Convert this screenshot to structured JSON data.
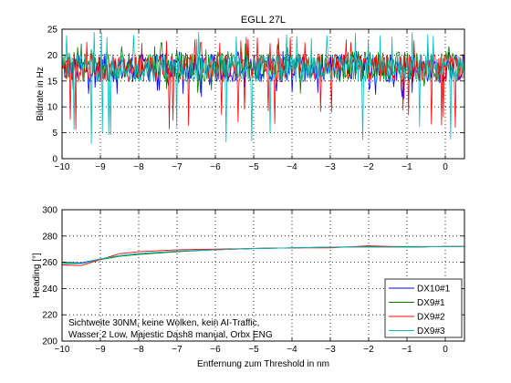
{
  "chart_data": [
    {
      "type": "line",
      "title": "EGLL 27L",
      "xlabel": "",
      "ylabel": "Bildrate in Hz",
      "xlim": [
        -10,
        0.5
      ],
      "ylim": [
        0,
        25
      ],
      "xticks": [
        -10,
        -9,
        -8,
        -7,
        -6,
        -5,
        -4,
        -3,
        -2,
        -1,
        0
      ],
      "yticks": [
        0,
        5,
        10,
        15,
        20,
        25
      ],
      "grid": true,
      "series": [
        {
          "name": "DX10#1",
          "color": "#0000ff",
          "approx_mean": 17.5,
          "approx_min": 11.5,
          "approx_max": 21.0
        },
        {
          "name": "DX9#1",
          "color": "#008000",
          "approx_mean": 18.0,
          "approx_min": 12.5,
          "approx_max": 22.5
        },
        {
          "name": "DX9#2",
          "color": "#ff0000",
          "approx_mean": 17.5,
          "approx_min": 5.5,
          "approx_max": 23.5
        },
        {
          "name": "DX9#3",
          "color": "#00bfbf",
          "approx_mean": 17.5,
          "approx_min": 2.5,
          "approx_max": 24.5
        }
      ]
    },
    {
      "type": "line",
      "title": "",
      "xlabel": "Entfernung zum Threshold in nm",
      "ylabel": "Heading [°]",
      "xlim": [
        -10,
        0.5
      ],
      "ylim": [
        200,
        300
      ],
      "xticks": [
        -10,
        -9,
        -8,
        -7,
        -6,
        -5,
        -4,
        -3,
        -2,
        -1,
        0
      ],
      "yticks": [
        200,
        220,
        240,
        260,
        280,
        300
      ],
      "grid": true,
      "legend": "lower-right",
      "series": [
        {
          "name": "DX10#1",
          "color": "#0000ff",
          "x": [
            -10,
            -9.5,
            -9,
            -8.5,
            -8,
            -7,
            -6,
            -5,
            -4,
            -3,
            -2,
            -1,
            0,
            0.5
          ],
          "y": [
            260,
            259.5,
            262.5,
            265,
            266.5,
            268.5,
            269.5,
            270.5,
            271,
            271.5,
            271.5,
            271.5,
            272,
            272
          ]
        },
        {
          "name": "DX9#1",
          "color": "#008000",
          "x": [
            -10,
            -9.5,
            -9,
            -8.5,
            -8,
            -7,
            -6,
            -5,
            -4,
            -3,
            -2,
            -1,
            0,
            0.5
          ],
          "y": [
            260,
            259,
            262,
            264.5,
            266,
            268,
            269.5,
            270.5,
            271,
            271.5,
            272,
            272,
            272,
            272
          ]
        },
        {
          "name": "DX9#2",
          "color": "#ff0000",
          "x": [
            -10,
            -9.5,
            -9,
            -8.5,
            -8,
            -7,
            -6,
            -5,
            -4,
            -3,
            -2,
            -1,
            0,
            0.5
          ],
          "y": [
            258,
            257.5,
            262,
            266.5,
            268,
            269.5,
            270,
            270.5,
            271,
            271,
            272.5,
            271.5,
            272,
            272
          ]
        },
        {
          "name": "DX9#3",
          "color": "#00bfbf",
          "x": [
            -10,
            -9.5,
            -9,
            -8.5,
            -8,
            -7,
            -6,
            -5,
            -4,
            -3,
            -2,
            -1,
            0,
            0.5
          ],
          "y": [
            259,
            259,
            262.5,
            265,
            266.5,
            268.5,
            269.5,
            270.5,
            271,
            271.5,
            271.5,
            271.5,
            272,
            272
          ]
        }
      ],
      "annotation": [
        "Sichtweite 30NM, keine Wolken, kein AI-Traffic,",
        "Wasser 2 Low, Majestic Dash8 manual, Orbx ENG"
      ]
    }
  ]
}
